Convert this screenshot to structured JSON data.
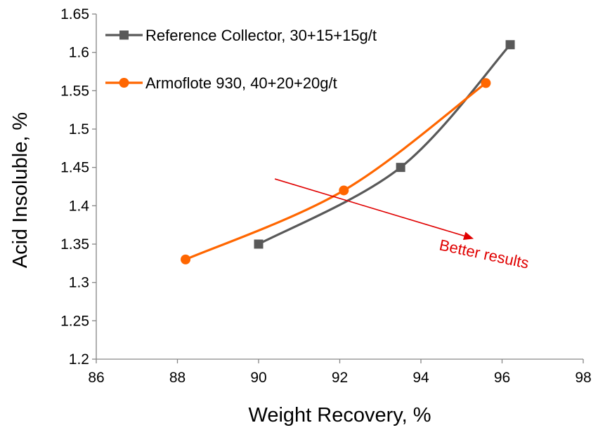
{
  "chart_data": {
    "type": "line",
    "title": "",
    "xlabel": "Weight Recovery, %",
    "ylabel": "Acid Insoluble, %",
    "xlim": [
      86,
      98
    ],
    "ylim": [
      1.2,
      1.65
    ],
    "x_ticks": [
      "86",
      "88",
      "90",
      "92",
      "94",
      "96",
      "98"
    ],
    "y_ticks": [
      "1.2",
      "1.25",
      "1.3",
      "1.35",
      "1.4",
      "1.45",
      "1.5",
      "1.55",
      "1.6",
      "1.65"
    ],
    "grid": false,
    "legend_position": "top-left",
    "series": [
      {
        "name": "Reference Collector, 30+15+15g/t",
        "color": "#595959",
        "marker": "square",
        "smooth": true,
        "points": [
          [
            90.0,
            1.35
          ],
          [
            93.5,
            1.45
          ],
          [
            96.2,
            1.61
          ]
        ]
      },
      {
        "name": "Armoflote 930, 40+20+20g/t",
        "color": "#FF6600",
        "marker": "circle",
        "smooth": true,
        "points": [
          [
            88.2,
            1.33
          ],
          [
            92.1,
            1.42
          ],
          [
            95.6,
            1.56
          ]
        ]
      }
    ],
    "annotation": {
      "text": "Better results",
      "color": "#E00000",
      "arrow_from": [
        90.4,
        1.435
      ],
      "arrow_to": [
        95.3,
        1.357
      ]
    }
  }
}
